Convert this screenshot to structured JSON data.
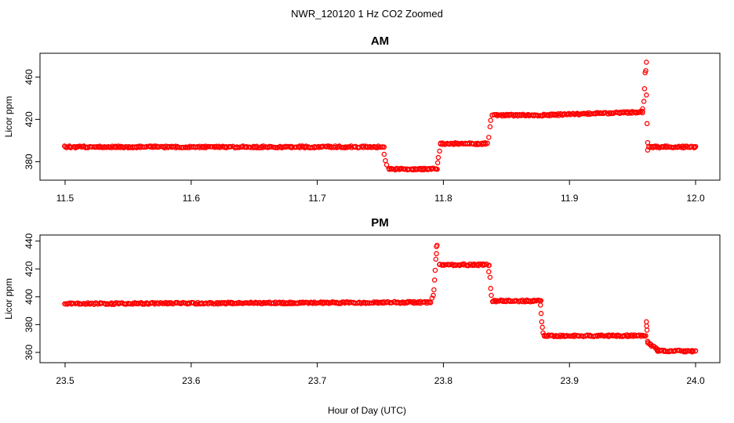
{
  "chart_data": [
    {
      "type": "scatter",
      "suptitle": "NWR_120120  1 Hz CO2 Zoomed",
      "title": "AM",
      "xlabel": "",
      "ylabel": "Licor ppm",
      "xlim": [
        11.5,
        12.0
      ],
      "ylim": [
        367,
        478
      ],
      "xticks": [
        "11.5",
        "11.6",
        "11.7",
        "11.8",
        "11.9",
        "12.0"
      ],
      "xtick_values": [
        11.5,
        11.6,
        11.7,
        11.8,
        11.9,
        12.0
      ],
      "yticks": [
        "380",
        "420",
        "460"
      ],
      "ytick_values": [
        380,
        420,
        460
      ],
      "marker_color": "#ff0000",
      "grid": false,
      "segments": [
        {
          "x": [
            11.5,
            11.753
          ],
          "y": [
            394,
            394
          ]
        },
        {
          "x": [
            11.757,
            11.795
          ],
          "y": [
            373,
            373
          ]
        },
        {
          "x": [
            11.798,
            11.835
          ],
          "y": [
            397,
            397
          ]
        },
        {
          "x": [
            11.839,
            11.88
          ],
          "y": [
            424,
            424
          ]
        },
        {
          "x": [
            11.88,
            11.958
          ],
          "y": [
            424,
            427
          ]
        },
        {
          "x": [
            11.963,
            12.0
          ],
          "y": [
            394,
            394
          ]
        }
      ],
      "points": [
        {
          "x": 11.753,
          "y": 387
        },
        {
          "x": 11.754,
          "y": 381
        },
        {
          "x": 11.755,
          "y": 377
        },
        {
          "x": 11.7955,
          "y": 379
        },
        {
          "x": 11.796,
          "y": 384
        },
        {
          "x": 11.797,
          "y": 390
        },
        {
          "x": 11.836,
          "y": 403
        },
        {
          "x": 11.837,
          "y": 413
        },
        {
          "x": 11.8375,
          "y": 419
        },
        {
          "x": 11.958,
          "y": 430
        },
        {
          "x": 11.959,
          "y": 437
        },
        {
          "x": 11.9595,
          "y": 449
        },
        {
          "x": 11.96,
          "y": 464
        },
        {
          "x": 11.9605,
          "y": 466
        },
        {
          "x": 11.961,
          "y": 474
        },
        {
          "x": 11.961,
          "y": 443
        },
        {
          "x": 11.9615,
          "y": 416
        },
        {
          "x": 11.962,
          "y": 398
        },
        {
          "x": 11.962,
          "y": 391
        }
      ]
    },
    {
      "type": "scatter",
      "title": "PM",
      "xlabel": "Hour of Day (UTC)",
      "ylabel": "Licor ppm",
      "xlim": [
        23.5,
        24.0
      ],
      "ylim": [
        356,
        441
      ],
      "xticks": [
        "23.5",
        "23.6",
        "23.7",
        "23.8",
        "23.9",
        "24.0"
      ],
      "xtick_values": [
        23.5,
        23.6,
        23.7,
        23.8,
        23.9,
        24.0
      ],
      "yticks": [
        "360",
        "380",
        "400",
        "420",
        "440"
      ],
      "ytick_values": [
        360,
        380,
        400,
        420,
        440
      ],
      "marker_color": "#ff0000",
      "grid": false,
      "segments": [
        {
          "x": [
            23.5,
            23.79
          ],
          "y": [
            395,
            396
          ]
        },
        {
          "x": [
            23.797,
            23.836
          ],
          "y": [
            423,
            423
          ]
        },
        {
          "x": [
            23.839,
            23.877
          ],
          "y": [
            397,
            397
          ]
        },
        {
          "x": [
            23.88,
            23.96
          ],
          "y": [
            372,
            372
          ]
        },
        {
          "x": [
            23.962,
            23.97
          ],
          "y": [
            367,
            362
          ]
        },
        {
          "x": [
            23.97,
            24.0
          ],
          "y": [
            361,
            361
          ]
        }
      ],
      "points": [
        {
          "x": 23.791,
          "y": 399
        },
        {
          "x": 23.792,
          "y": 401
        },
        {
          "x": 23.7925,
          "y": 405
        },
        {
          "x": 23.793,
          "y": 412
        },
        {
          "x": 23.7935,
          "y": 419
        },
        {
          "x": 23.794,
          "y": 427
        },
        {
          "x": 23.7945,
          "y": 431
        },
        {
          "x": 23.7945,
          "y": 436
        },
        {
          "x": 23.795,
          "y": 437
        },
        {
          "x": 23.836,
          "y": 418
        },
        {
          "x": 23.837,
          "y": 414
        },
        {
          "x": 23.8375,
          "y": 406
        },
        {
          "x": 23.838,
          "y": 401
        },
        {
          "x": 23.877,
          "y": 394
        },
        {
          "x": 23.8775,
          "y": 388
        },
        {
          "x": 23.878,
          "y": 382
        },
        {
          "x": 23.8785,
          "y": 378
        },
        {
          "x": 23.879,
          "y": 374
        },
        {
          "x": 23.961,
          "y": 382
        },
        {
          "x": 23.9612,
          "y": 379
        },
        {
          "x": 23.9615,
          "y": 376
        },
        {
          "x": 23.962,
          "y": 368
        }
      ]
    }
  ]
}
